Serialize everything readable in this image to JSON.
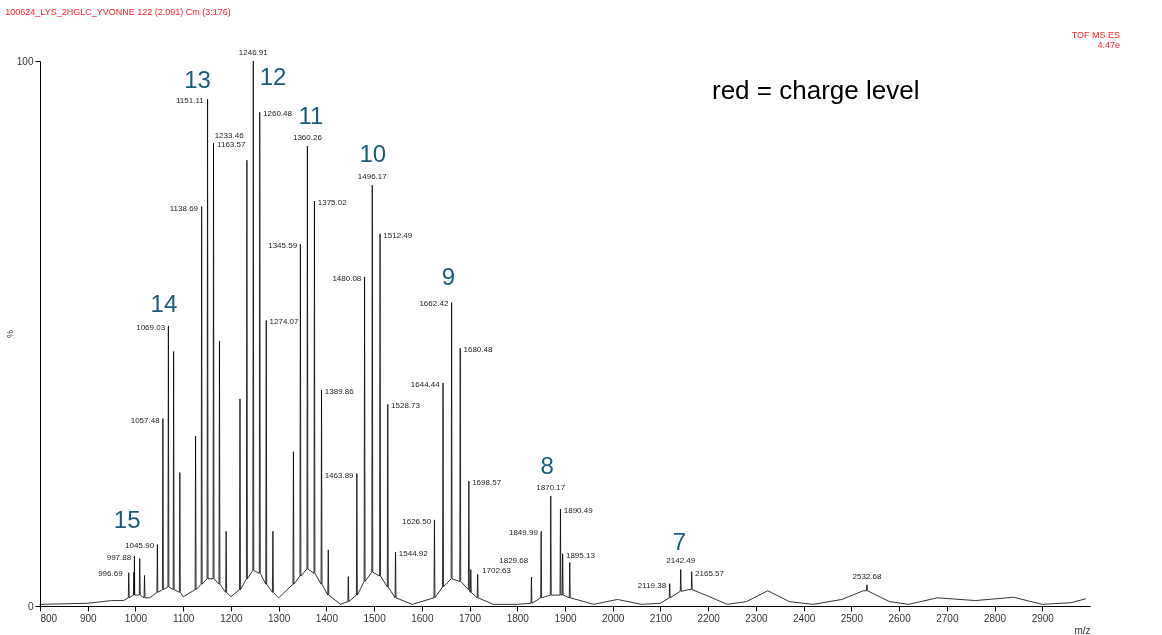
{
  "chart_data": {
    "type": "line",
    "title": "100624_LYS_2HGLC_YVONNE 122 (2.091) Cm (3:176)",
    "xlabel": "m/z",
    "ylabel": "%",
    "xlim": [
      800,
      3000
    ],
    "ylim": [
      0,
      100
    ],
    "xticks": [
      800,
      900,
      1000,
      1100,
      1200,
      1300,
      1400,
      1500,
      1600,
      1700,
      1800,
      1900,
      2000,
      2100,
      2200,
      2300,
      2400,
      2500,
      2600,
      2700,
      2800,
      2900
    ],
    "yticks": [
      0,
      100
    ],
    "series": [
      {
        "color": "#000000",
        "x": [
          800,
          900,
          950,
          975,
          985,
          986,
          987,
          995.5,
          996.69,
          997.3,
          997.88,
          998.5,
          1008,
          1009,
          1010,
          1018,
          1019,
          1020,
          1030,
          1044.9,
          1045.9,
          1046.9,
          1056.5,
          1057.48,
          1058.5,
          1068,
          1069.03,
          1070,
          1079,
          1080,
          1081,
          1092,
          1093,
          1094,
          1100,
          1125,
          1126,
          1127,
          1137.7,
          1138.69,
          1139.7,
          1150.1,
          1151.11,
          1152.1,
          1162.6,
          1163.57,
          1164.6,
          1175,
          1176,
          1177,
          1189,
          1190,
          1191,
          1200,
          1218,
          1219,
          1220,
          1232.5,
          1233.46,
          1234.5,
          1245.9,
          1246.91,
          1247.9,
          1259.5,
          1260.48,
          1261.5,
          1273,
          1274.07,
          1275,
          1287,
          1288,
          1289,
          1300,
          1330,
          1331,
          1332,
          1344.6,
          1345.59,
          1346.6,
          1359.3,
          1360.26,
          1361.3,
          1374,
          1375.02,
          1376,
          1388.9,
          1389.86,
          1390.9,
          1403,
          1404,
          1405,
          1430,
          1445,
          1446,
          1447,
          1462.9,
          1463.89,
          1464.9,
          1479.1,
          1480.08,
          1481.1,
          1495.2,
          1496.17,
          1497.2,
          1511.5,
          1512.49,
          1513.5,
          1527.7,
          1528.73,
          1529.7,
          1543.9,
          1544.92,
          1545.9,
          1580,
          1625.5,
          1626.5,
          1627.5,
          1643.4,
          1644.44,
          1645.4,
          1661.4,
          1662.42,
          1663.4,
          1679.5,
          1680.48,
          1681.5,
          1697.6,
          1698.57,
          1699.6,
          1701.6,
          1702.63,
          1703.6,
          1716,
          1717,
          1718,
          1750,
          1800,
          1828.7,
          1829.68,
          1830.7,
          1849,
          1849.99,
          1851,
          1869.2,
          1870.17,
          1871.2,
          1889.5,
          1890.49,
          1891.5,
          1894.1,
          1895.13,
          1896.1,
          1909,
          1910,
          1911,
          1940,
          1960,
          2010,
          2060,
          2100,
          2118.4,
          2119.38,
          2120.4,
          2141.5,
          2142.49,
          2143.5,
          2160,
          2164.6,
          2165.57,
          2166.6,
          2200,
          2240,
          2280,
          2325,
          2370,
          2420,
          2480,
          2525,
          2531.7,
          2532.68,
          2533.7,
          2580,
          2620,
          2680,
          2760,
          2840,
          2900,
          2960,
          2990
        ],
        "values": [
          0.3,
          0.5,
          1.0,
          1.0,
          1.5,
          6.1,
          1.5,
          2,
          6.2,
          2,
          9.2,
          2,
          2,
          8.7,
          2,
          1.5,
          5.6,
          1.5,
          1.5,
          2.5,
          11.3,
          2.5,
          3,
          34.4,
          3,
          3.5,
          51.4,
          3.5,
          3,
          46.7,
          3,
          2.5,
          24.5,
          2.5,
          1.7,
          3,
          31.2,
          3,
          4,
          73.3,
          4,
          5,
          93.0,
          5,
          5,
          84.9,
          5,
          4,
          48.6,
          4,
          2.5,
          13.7,
          2.5,
          1.7,
          3,
          38.0,
          3,
          5,
          81.8,
          5,
          6.5,
          100,
          6.5,
          6,
          90.6,
          6,
          4,
          52.4,
          4,
          2.5,
          13.7,
          2.5,
          1.5,
          4,
          28.3,
          4,
          5.5,
          66.4,
          5.5,
          6.8,
          84.4,
          6.8,
          6,
          74.3,
          6,
          4,
          39.6,
          4,
          2,
          10.3,
          2,
          0.3,
          0.8,
          5.4,
          0.8,
          2,
          24.3,
          2,
          4.5,
          60.4,
          4.5,
          6.2,
          77.2,
          6.2,
          5.5,
          68.3,
          5.5,
          3.5,
          37.0,
          3.5,
          1.5,
          9.9,
          1.5,
          0.3,
          1.5,
          15.8,
          1.5,
          3.5,
          40.9,
          3.5,
          5,
          55.7,
          5,
          4.5,
          47.3,
          4.5,
          3,
          22.9,
          3,
          2.5,
          6.7,
          2.5,
          1.5,
          5.8,
          1.5,
          0.3,
          0.3,
          0.5,
          5.3,
          0.5,
          1.5,
          13.7,
          1.5,
          2,
          20.2,
          2,
          2,
          17.8,
          2,
          2,
          9.6,
          2,
          1.5,
          8.0,
          1.5,
          0.8,
          0.3,
          1.2,
          0.3,
          0.5,
          1.5,
          4.1,
          1.5,
          2.7,
          6.7,
          2.7,
          3.0,
          3.0,
          6.3,
          3.0,
          1.8,
          0.3,
          0.8,
          2.8,
          0.8,
          0.3,
          1.2,
          2.8,
          2.8,
          3.9,
          2.8,
          0.8,
          0.3,
          1.5,
          1.0,
          1.6,
          0.3,
          0.6,
          1.3
        ]
      }
    ],
    "annotations": [
      "15",
      "14",
      "13",
      "12",
      "11",
      "10",
      "9",
      "8",
      "7",
      "red = charge level",
      "TOF MS ES",
      "4.47e",
      {
        "text": "996.69",
        "x": 996.69,
        "y": 6.2
      },
      {
        "text": "997.88",
        "x": 997.88,
        "y": 9.2
      },
      {
        "text": "1045.90",
        "x": 1045.9,
        "y": 11.3
      },
      {
        "text": "1057.48",
        "x": 1057.48,
        "y": 34.4
      },
      {
        "text": "1069.03",
        "x": 1069.03,
        "y": 51.4
      },
      {
        "text": "1138.69",
        "x": 1138.69,
        "y": 73.3
      },
      {
        "text": "1151.11",
        "x": 1151.11,
        "y": 93.0
      },
      {
        "text": "1163.57",
        "x": 1163.57,
        "y": 84.9
      },
      {
        "text": "1233.46",
        "x": 1233.46,
        "y": 81.8
      },
      {
        "text": "1246.91",
        "x": 1246.91,
        "y": 100
      },
      {
        "text": "1260.48",
        "x": 1260.48,
        "y": 90.6
      },
      {
        "text": "1274.07",
        "x": 1274.07,
        "y": 52.4
      },
      {
        "text": "1345.59",
        "x": 1345.59,
        "y": 66.4
      },
      {
        "text": "1360.26",
        "x": 1360.26,
        "y": 84.4
      },
      {
        "text": "1375.02",
        "x": 1375.02,
        "y": 74.3
      },
      {
        "text": "1389.86",
        "x": 1389.86,
        "y": 39.6
      },
      {
        "text": "1463.89",
        "x": 1463.89,
        "y": 24.3
      },
      {
        "text": "1480.08",
        "x": 1480.08,
        "y": 60.4
      },
      {
        "text": "1496.17",
        "x": 1496.17,
        "y": 77.2
      },
      {
        "text": "1512.49",
        "x": 1512.49,
        "y": 68.3
      },
      {
        "text": "1528.73",
        "x": 1528.73,
        "y": 37.0
      },
      {
        "text": "1544.92",
        "x": 1544.92,
        "y": 9.9
      },
      {
        "text": "1626.50",
        "x": 1626.5,
        "y": 15.8
      },
      {
        "text": "1644.44",
        "x": 1644.44,
        "y": 40.9
      },
      {
        "text": "1662.42",
        "x": 1662.42,
        "y": 55.7
      },
      {
        "text": "1680.48",
        "x": 1680.48,
        "y": 47.3
      },
      {
        "text": "1698.57",
        "x": 1698.57,
        "y": 22.9
      },
      {
        "text": "1702.63",
        "x": 1702.63,
        "y": 6.7
      },
      {
        "text": "1829.68",
        "x": 1829.68,
        "y": 5.3
      },
      {
        "text": "1849.99",
        "x": 1849.99,
        "y": 13.7
      },
      {
        "text": "1870.17",
        "x": 1870.17,
        "y": 20.2
      },
      {
        "text": "1890.49",
        "x": 1890.49,
        "y": 17.8
      },
      {
        "text": "1895.13",
        "x": 1895.13,
        "y": 9.6
      },
      {
        "text": "2119.38",
        "x": 2119.38,
        "y": 4.1
      },
      {
        "text": "2142.49",
        "x": 2142.49,
        "y": 6.7
      },
      {
        "text": "2165.57",
        "x": 2165.57,
        "y": 6.3
      },
      {
        "text": "2532.68",
        "x": 2532.68,
        "y": 3.9
      }
    ]
  }
}
